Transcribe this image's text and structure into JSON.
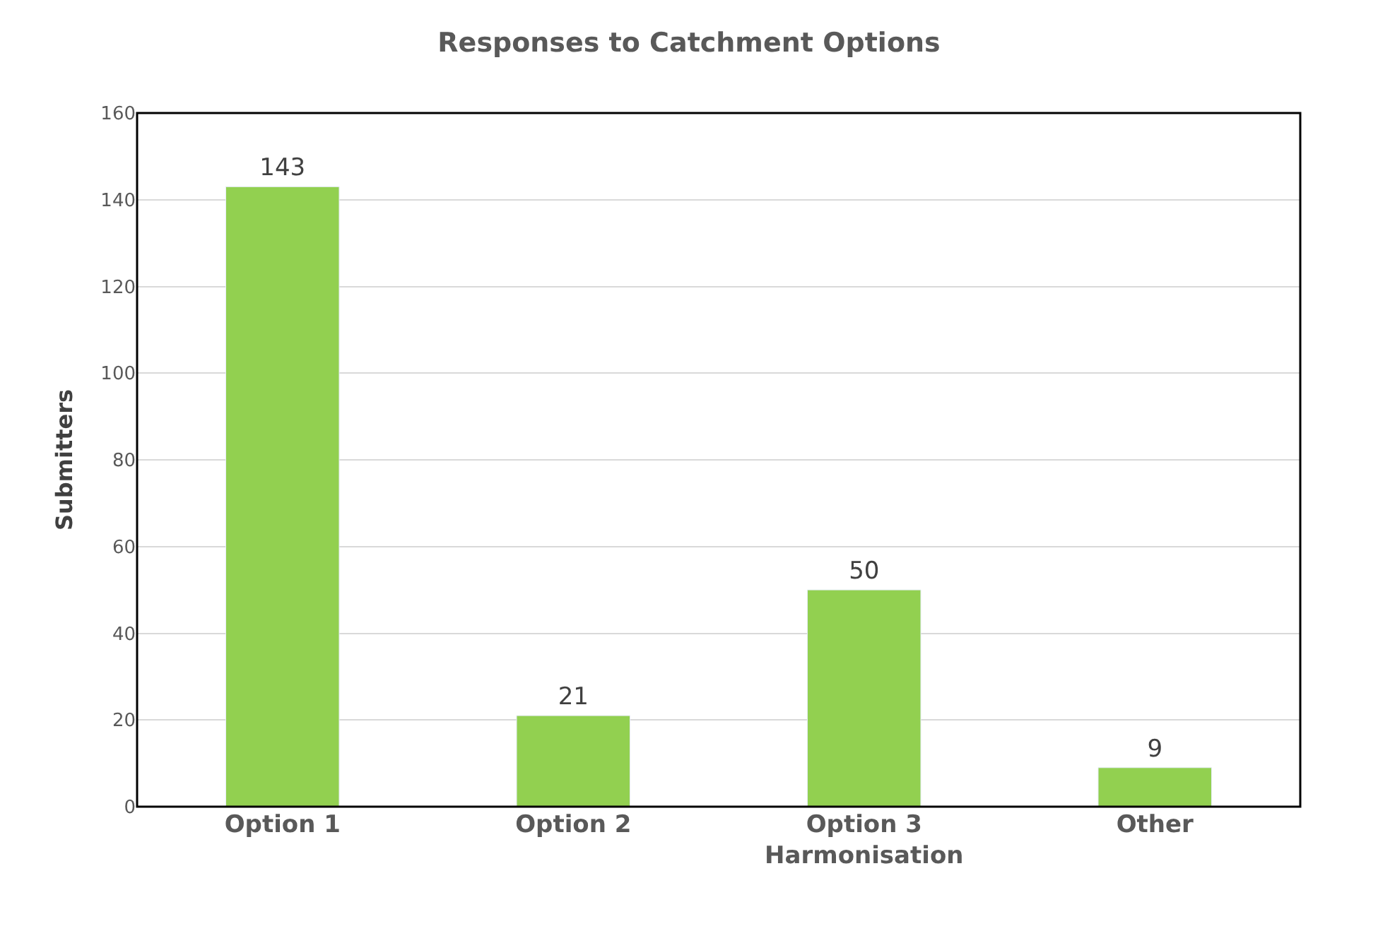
{
  "chart_data": {
    "type": "bar",
    "title": "Responses to Catchment Options",
    "ylabel": "Submitters",
    "categories": [
      "Option 1",
      "Option 2",
      "Option 3\nHarmonisation",
      "Other"
    ],
    "values": [
      143,
      21,
      50,
      9
    ],
    "color": "#92d050",
    "ylim": [
      0,
      160
    ],
    "yticks": [
      0,
      20,
      40,
      60,
      80,
      100,
      120,
      140,
      160
    ],
    "grid": "y",
    "data_labels": true
  }
}
